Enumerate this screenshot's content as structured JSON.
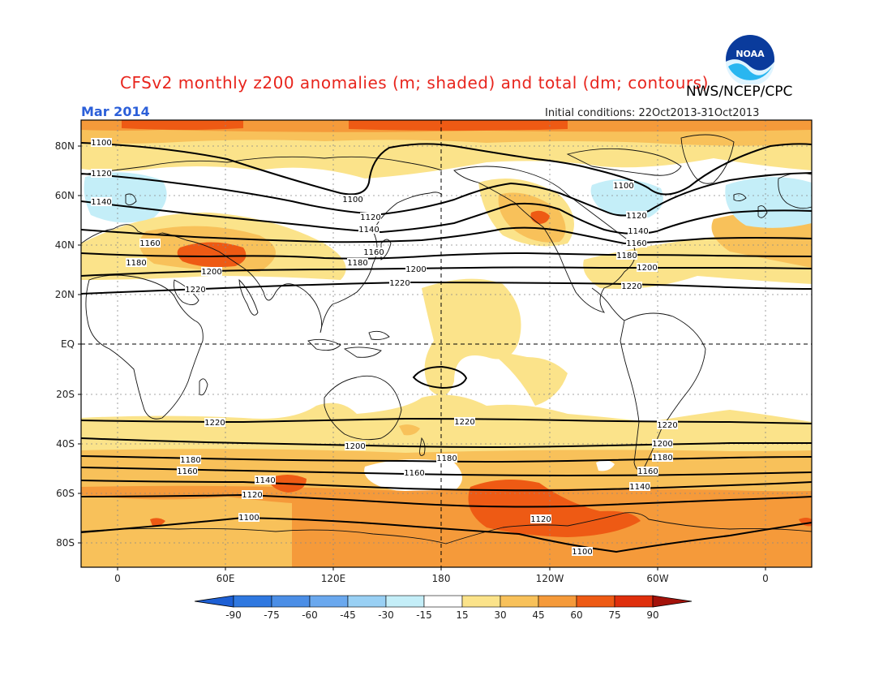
{
  "header": {
    "title": "CFSv2 monthly z200 anomalies (m; shaded) and total (dm; contours)",
    "agency": "NWS/NCEP/CPC",
    "logo_text": "NOAA",
    "month": "Mar 2014",
    "initial_conditions": "Initial conditions: 22Oct2013-31Oct2013"
  },
  "axes": {
    "lat_labels": [
      "80N",
      "60N",
      "40N",
      "20N",
      "EQ",
      "20S",
      "40S",
      "60S",
      "80S"
    ],
    "lon_labels": [
      "0",
      "60E",
      "120E",
      "180",
      "120W",
      "60W",
      "0"
    ]
  },
  "contour_labels": [
    "1100",
    "1120",
    "1140",
    "1160",
    "1180",
    "1200",
    "1220"
  ],
  "colorbar": {
    "levels": [
      "-90",
      "-75",
      "-60",
      "-45",
      "-30",
      "-15",
      "15",
      "30",
      "45",
      "60",
      "75",
      "90"
    ],
    "colors": {
      "below": "#1d5fd4",
      "bins": [
        "#2f78e0",
        "#4b8ee6",
        "#6aa8ee",
        "#99d0f4",
        "#c4eef8",
        "#ffffff",
        "#fbe38a",
        "#f8c15a",
        "#f59a3a",
        "#ee5a14",
        "#df2f0c"
      ],
      "above": "#a3120a"
    }
  },
  "colors": {
    "title": "#e8251d",
    "month": "#2b5fd9",
    "contour": "#000000",
    "coast": "#000000"
  }
}
